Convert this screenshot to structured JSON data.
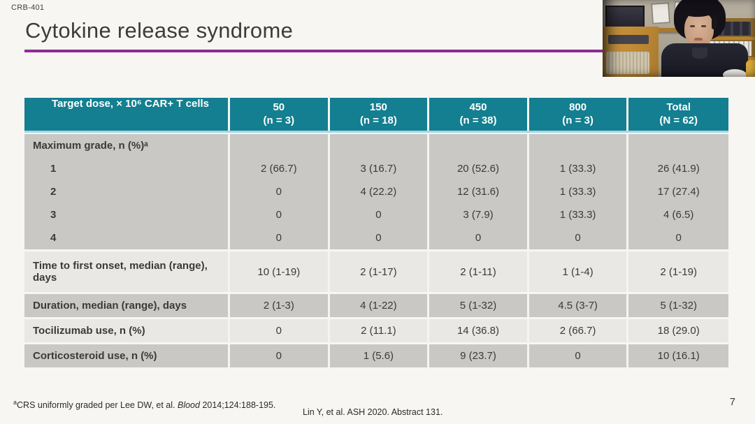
{
  "slide": {
    "study_label": "CRB-401",
    "title": "Cytokine release syndrome",
    "page_number": "7",
    "citation": "Lin Y, et al. ASH 2020. Abstract 131.",
    "footnote": {
      "sup": "a",
      "pre": "CRS uniformly graded per Lee DW, et al. ",
      "italic_word": "Blood",
      "post": " 2014;124:188-195."
    }
  },
  "table": {
    "corner_label": "Target dose, × 10⁶ CAR+ T cells",
    "columns": [
      {
        "line1": "50",
        "line2": "(n = 3)"
      },
      {
        "line1": "150",
        "line2": "(n = 18)"
      },
      {
        "line1": "450",
        "line2": "(n = 38)"
      },
      {
        "line1": "800",
        "line2": "(n = 3)"
      },
      {
        "line1": "Total",
        "line2": "(N = 62)"
      }
    ],
    "rows": [
      {
        "label": "Maximum grade, n (%)ᵃ",
        "shade": "dark",
        "values": [
          "",
          "",
          "",
          "",
          ""
        ]
      },
      {
        "label": "1",
        "indent": true,
        "shade": "dark",
        "values": [
          "2 (66.7)",
          "3 (16.7)",
          "20 (52.6)",
          "1 (33.3)",
          "26 (41.9)"
        ]
      },
      {
        "label": "2",
        "indent": true,
        "shade": "dark",
        "values": [
          "0",
          "4 (22.2)",
          "12 (31.6)",
          "1 (33.3)",
          "17 (27.4)"
        ]
      },
      {
        "label": "3",
        "indent": true,
        "shade": "dark",
        "values": [
          "0",
          "0",
          "3 (7.9)",
          "1 (33.3)",
          "4 (6.5)"
        ]
      },
      {
        "label": "4",
        "indent": true,
        "shade": "dark",
        "values": [
          "0",
          "0",
          "0",
          "0",
          "0"
        ]
      },
      {
        "label": "Time to first onset, median (range), days",
        "shade": "light",
        "tall": true,
        "gap": true,
        "values": [
          "10 (1-19)",
          "2 (1-17)",
          "2 (1-11)",
          "1 (1-4)",
          "2 (1-19)"
        ]
      },
      {
        "label": "Duration, median (range), days",
        "shade": "dark",
        "gap": true,
        "values": [
          "2 (1-3)",
          "4 (1-22)",
          "5 (1-32)",
          "4.5 (3-7)",
          "5 (1-32)"
        ]
      },
      {
        "label": "Tocilizumab use, n (%)",
        "shade": "light",
        "gap": true,
        "values": [
          "0",
          "2 (11.1)",
          "14 (36.8)",
          "2 (66.7)",
          "18 (29.0)"
        ]
      },
      {
        "label": "Corticosteroid use, n (%)",
        "shade": "dark",
        "gap": true,
        "values": [
          "0",
          "1 (5.6)",
          "9 (23.7)",
          "0",
          "10 (16.1)"
        ]
      }
    ]
  },
  "colors": {
    "header_bg": "#137f90",
    "header_accent": "#a5d8e2",
    "row_dark": "#c9c8c5",
    "row_light": "#e9e8e5",
    "title_rule": "#8c2d93"
  }
}
